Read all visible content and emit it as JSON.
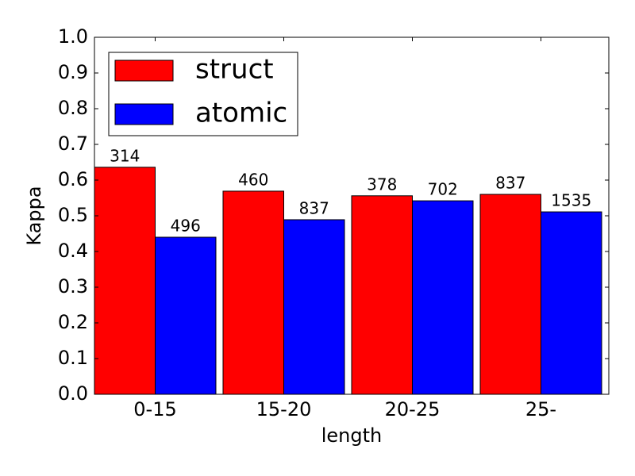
{
  "chart_data": {
    "type": "bar",
    "categories": [
      "0-15",
      "15-20",
      "20-25",
      "25-"
    ],
    "series": [
      {
        "name": "struct",
        "color": "#ff0000",
        "values": [
          0.636,
          0.569,
          0.556,
          0.56
        ],
        "labels": [
          314,
          460,
          378,
          837
        ]
      },
      {
        "name": "atomic",
        "color": "#0000ff",
        "values": [
          0.44,
          0.489,
          0.542,
          0.511
        ],
        "labels": [
          496,
          837,
          702,
          1535
        ]
      }
    ],
    "xlabel": "length",
    "ylabel": "Kappa",
    "ylim": [
      0,
      1
    ],
    "yticks": [
      {
        "value": 0,
        "label": "0.0"
      },
      0.1,
      0.2,
      0.3,
      0.4,
      0.5,
      0.6,
      0.7,
      0.8,
      0.9,
      {
        "value": 1,
        "label": "1.0"
      }
    ],
    "legend": "upper-left"
  }
}
